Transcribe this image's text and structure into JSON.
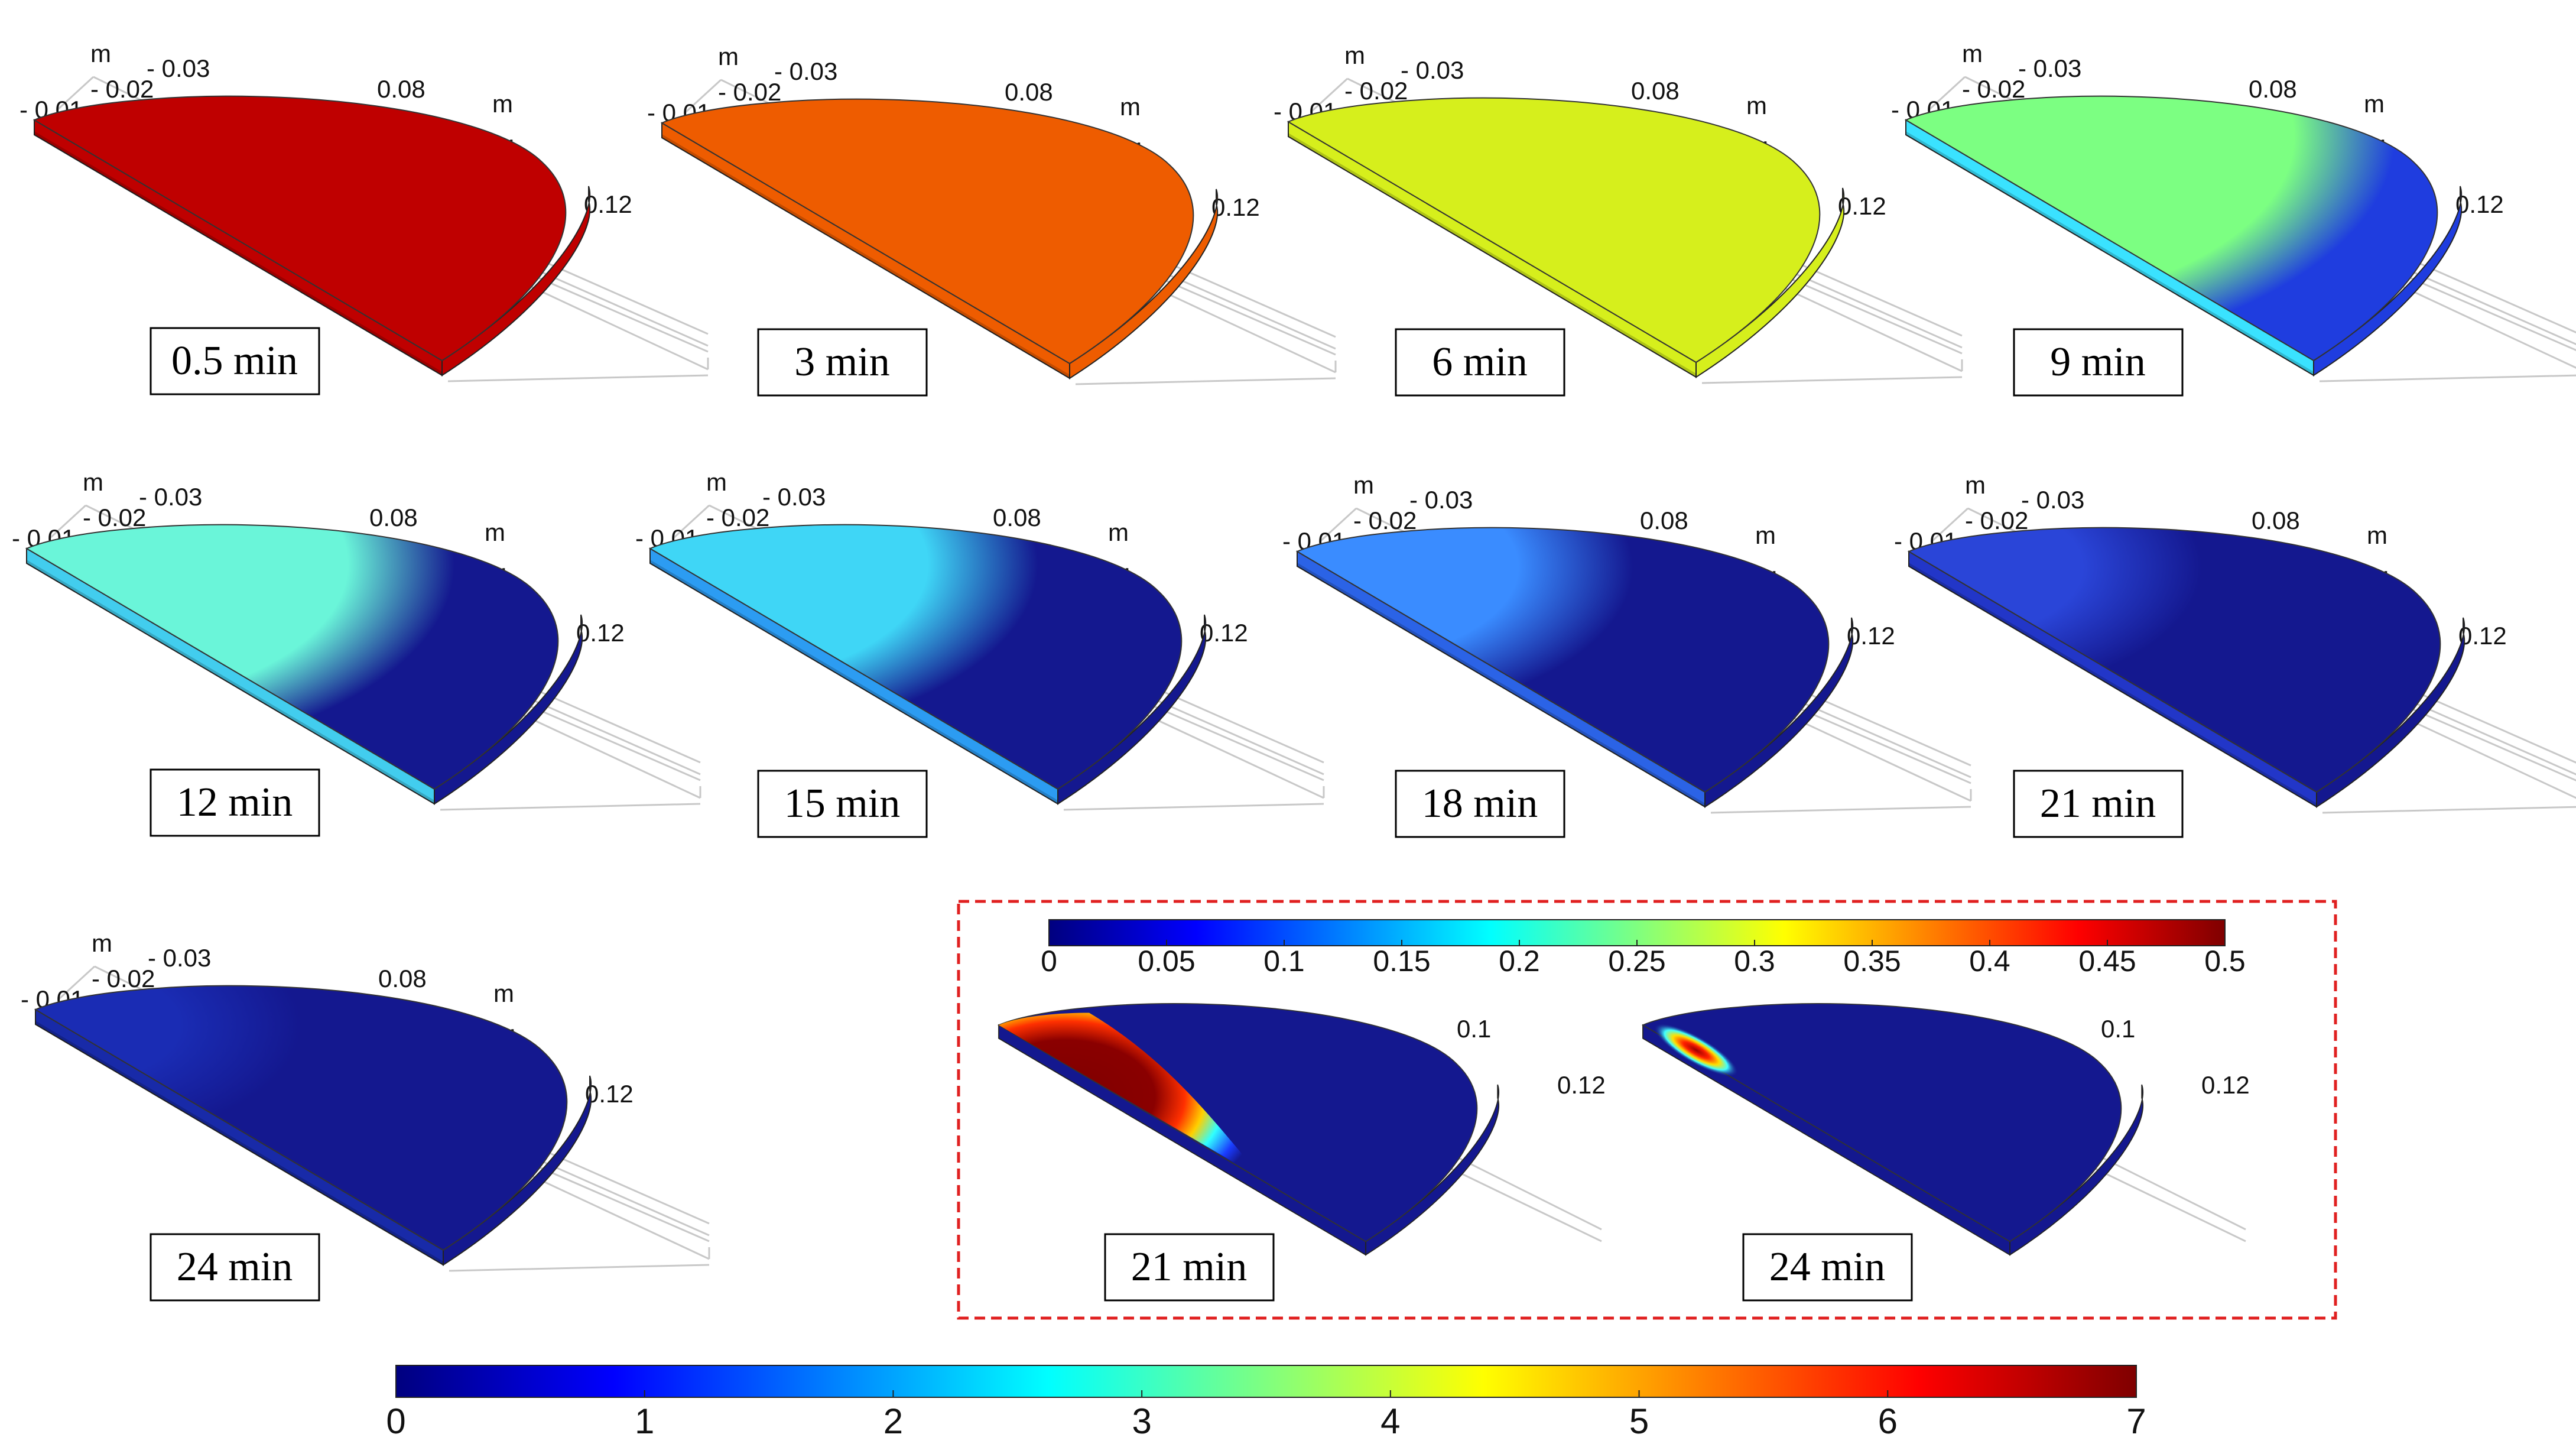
{
  "axis_labels": {
    "unit": "m",
    "y_ticks": [
      "- 0.01",
      "- 0.02",
      "- 0.03"
    ],
    "x_ticks": [
      "0.08",
      "0.1",
      "0.12"
    ]
  },
  "panels": [
    {
      "time": "0.5 min",
      "color": "#bf0000",
      "gradient": false
    },
    {
      "time": "3 min",
      "color": "#ee5c00",
      "gradient": false
    },
    {
      "time": "6 min",
      "color": "#d6ef1c",
      "gradient": false
    },
    {
      "time": "9 min",
      "inner": "#7cff82",
      "outer": "#1f3ddf",
      "front": "#3ae2ff",
      "spread": 0.22
    },
    {
      "time": "12 min",
      "inner": "#6af5d9",
      "outer": "#14188f",
      "front": "#42cdee",
      "spread": 0.42
    },
    {
      "time": "15 min",
      "inner": "#3fd6f6",
      "outer": "#14188f",
      "front": "#2c9cf2",
      "spread": 0.55
    },
    {
      "time": "18 min",
      "inner": "#3a8cff",
      "outer": "#14188f",
      "front": "#2b63e6",
      "spread": 0.72
    },
    {
      "time": "21 min",
      "inner": "#2a45d8",
      "outer": "#14188f",
      "front": "#2236c8",
      "spread": 0.86
    },
    {
      "time": "24 min",
      "inner": "#1a2cb4",
      "outer": "#14188f",
      "front": "#182aa8",
      "spread": 0.95
    }
  ],
  "inset": {
    "panels": [
      {
        "time": "21 min"
      },
      {
        "time": "24 min"
      }
    ],
    "x_ticks": [
      "0.1",
      "0.12"
    ],
    "colorbar_ticks": [
      "0",
      "0.05",
      "0.1",
      "0.15",
      "0.2",
      "0.25",
      "0.3",
      "0.35",
      "0.4",
      "0.45",
      "0.5"
    ],
    "border_color": "#e02020"
  },
  "colorbar": {
    "ticks": [
      "0",
      "1",
      "2",
      "3",
      "4",
      "5",
      "6",
      "7"
    ]
  },
  "colormap": [
    "#00007f",
    "#0000ff",
    "#007fff",
    "#00ffff",
    "#7fff7f",
    "#ffff00",
    "#ff7f00",
    "#ff0000",
    "#7f0000"
  ]
}
